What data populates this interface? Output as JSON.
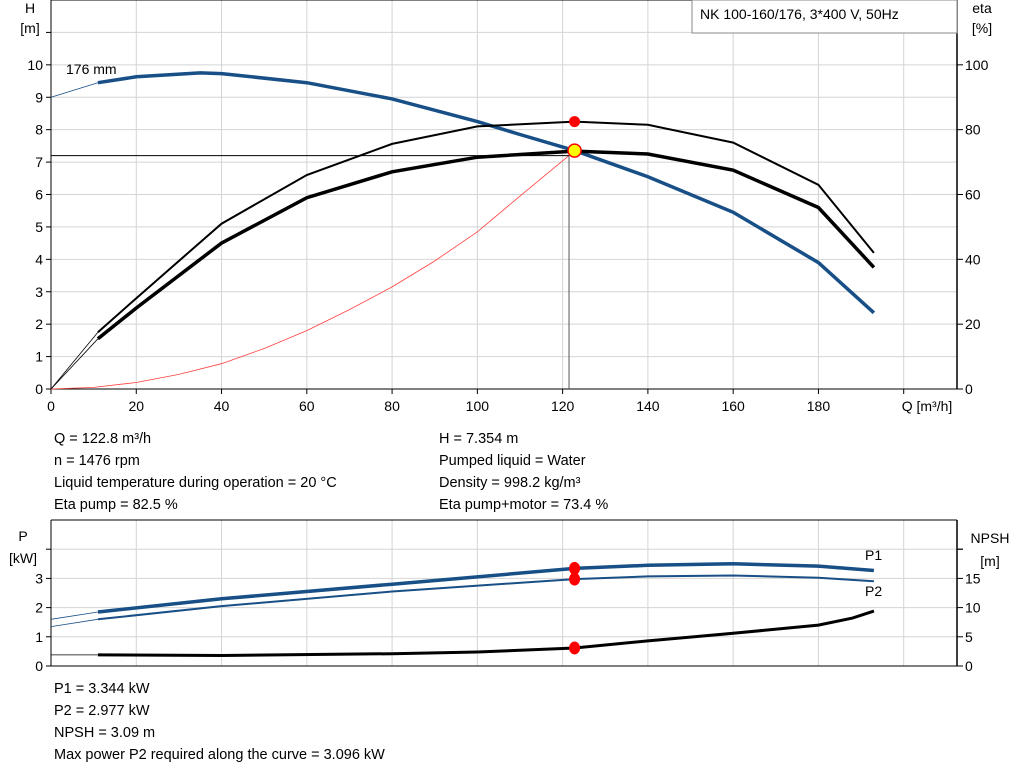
{
  "chart_data": [
    {
      "type": "line",
      "title": "NK 100-160/176, 3*400 V, 50Hz",
      "xlabel": "Q [m³/h]",
      "ylabel_left": [
        "H",
        "[m]"
      ],
      "ylabel_right": [
        "eta",
        "[%]"
      ],
      "xlim": [
        0,
        212.5
      ],
      "ylim_left": [
        0,
        12
      ],
      "ylim_right": [
        0,
        120
      ],
      "xticks": [
        0,
        20,
        40,
        60,
        80,
        100,
        120,
        140,
        160,
        180
      ],
      "yticks_left": [
        0,
        1,
        2,
        3,
        4,
        5,
        6,
        7,
        8,
        9,
        10
      ],
      "yticks_right": [
        0,
        20,
        40,
        60,
        80,
        100
      ],
      "grid": true,
      "curve_label": "176 mm",
      "series": [
        {
          "key": "H",
          "axis": "left",
          "color": "#174f86",
          "extrapolated": [
            [
              0,
              9.0
            ],
            [
              11,
              9.45
            ]
          ],
          "points": [
            [
              11,
              9.45
            ],
            [
              20,
              9.63
            ],
            [
              35,
              9.75
            ],
            [
              40,
              9.73
            ],
            [
              60,
              9.45
            ],
            [
              80,
              8.95
            ],
            [
              100,
              8.25
            ],
            [
              110,
              7.85
            ],
            [
              122.8,
              7.354
            ],
            [
              140,
              6.55
            ],
            [
              160,
              5.45
            ],
            [
              180,
              3.9
            ],
            [
              193,
              2.35
            ]
          ]
        },
        {
          "key": "eta_pump",
          "axis": "right",
          "color": "#000000",
          "extrapolated": [
            [
              0,
              0
            ],
            [
              11,
              17.5
            ]
          ],
          "points": [
            [
              11,
              17.5
            ],
            [
              20,
              28
            ],
            [
              40,
              51
            ],
            [
              60,
              66
            ],
            [
              80,
              75.6
            ],
            [
              100,
              81
            ],
            [
              122.8,
              82.5
            ],
            [
              140,
              81.5
            ],
            [
              160,
              76
            ],
            [
              180,
              63
            ],
            [
              193,
              42
            ]
          ]
        },
        {
          "key": "eta_pump_motor",
          "axis": "right",
          "color": "#000000",
          "extrapolated": [
            [
              0,
              0
            ],
            [
              11,
              15.5
            ]
          ],
          "points": [
            [
              11,
              15.5
            ],
            [
              20,
              25
            ],
            [
              40,
              45
            ],
            [
              60,
              59
            ],
            [
              80,
              67
            ],
            [
              100,
              71.5
            ],
            [
              122.8,
              73.4
            ],
            [
              140,
              72.5
            ],
            [
              160,
              67.5
            ],
            [
              180,
              56
            ],
            [
              193,
              37.5
            ]
          ]
        },
        {
          "key": "system_curve",
          "axis": "left",
          "color": "#ff4040",
          "points": [
            [
              0,
              0
            ],
            [
              10,
              0.05
            ],
            [
              20,
              0.2
            ],
            [
              30,
              0.45
            ],
            [
              40,
              0.78
            ],
            [
              50,
              1.25
            ],
            [
              60,
              1.8
            ],
            [
              70,
              2.45
            ],
            [
              80,
              3.15
            ],
            [
              90,
              3.95
            ],
            [
              100,
              4.85
            ],
            [
              110,
              5.95
            ],
            [
              121.5,
              7.2
            ]
          ]
        }
      ],
      "duty_point": {
        "Q": 122.8,
        "H": 7.354,
        "eta_pump": 82.5,
        "eta_pump_motor": 73.4
      },
      "crosshair": {
        "Q": 121.5,
        "H": 7.2
      }
    },
    {
      "type": "line",
      "ylabel_left": [
        "P",
        "[kW]"
      ],
      "ylabel_right": [
        "NPSH",
        "[m]"
      ],
      "xlim": [
        0,
        212.5
      ],
      "ylim_left": [
        0,
        5
      ],
      "ylim_right": [
        0,
        25
      ],
      "yticks_left": [
        0,
        1,
        2,
        3
      ],
      "yticks_right": [
        0,
        5,
        10,
        15
      ],
      "grid": true,
      "series": [
        {
          "name": "P1",
          "axis": "left",
          "color": "#174f86",
          "extrapolated": [
            [
              0,
              1.6
            ],
            [
              11,
              1.85
            ]
          ],
          "points": [
            [
              11,
              1.85
            ],
            [
              40,
              2.3
            ],
            [
              80,
              2.8
            ],
            [
              122.8,
              3.344
            ],
            [
              140,
              3.45
            ],
            [
              160,
              3.5
            ],
            [
              180,
              3.42
            ],
            [
              193,
              3.27
            ]
          ]
        },
        {
          "name": "P2",
          "axis": "left",
          "color": "#174f86",
          "extrapolated": [
            [
              0,
              1.35
            ],
            [
              11,
              1.6
            ]
          ],
          "points": [
            [
              11,
              1.6
            ],
            [
              40,
              2.05
            ],
            [
              80,
              2.55
            ],
            [
              122.8,
              2.977
            ],
            [
              140,
              3.07
            ],
            [
              160,
              3.1
            ],
            [
              180,
              3.02
            ],
            [
              193,
              2.9
            ]
          ]
        },
        {
          "key": "NPSH",
          "axis": "right",
          "color": "#000000",
          "extrapolated": [
            [
              0,
              1.9
            ],
            [
              11,
              1.9
            ]
          ],
          "points": [
            [
              11,
              1.9
            ],
            [
              40,
              1.8
            ],
            [
              80,
              2.1
            ],
            [
              100,
              2.4
            ],
            [
              122.8,
              3.09
            ],
            [
              140,
              4.3
            ],
            [
              160,
              5.6
            ],
            [
              180,
              7.0
            ],
            [
              188,
              8.2
            ],
            [
              193,
              9.4
            ]
          ]
        }
      ],
      "duty_point": {
        "Q": 122.8,
        "P1": 3.344,
        "P2": 2.977,
        "NPSH": 3.09
      }
    }
  ],
  "info_top_left": [
    "Q = 122.8 m³/h",
    "n = 1476 rpm",
    "Liquid temperature during operation = 20 °C",
    "Eta pump = 82.5 %"
  ],
  "info_top_right": [
    "H = 7.354 m",
    "Pumped liquid = Water",
    "Density = 998.2 kg/m³",
    "Eta pump+motor = 73.4 %"
  ],
  "info_bottom": [
    "P1 = 3.344 kW",
    "P2 = 2.977 kW",
    "NPSH = 3.09 m",
    "Max power P2 required along the curve = 3.096 kW"
  ]
}
